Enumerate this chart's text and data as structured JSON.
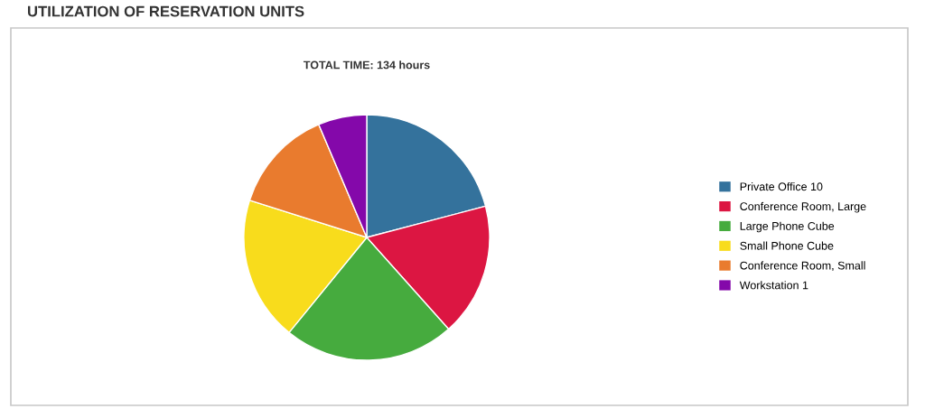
{
  "chart_data": {
    "type": "pie",
    "title": "UTILIZATION OF RESERVATION UNITS",
    "subtitle": "TOTAL TIME: 134 hours",
    "categories": [
      "Private Office 10",
      "Conference Room, Large",
      "Large Phone Cube",
      "Small Phone Cube",
      "Conference Room, Small",
      "Workstation 1"
    ],
    "values": [
      20.9,
      17.5,
      22.5,
      19.0,
      13.7,
      6.4
    ],
    "colors": [
      "#34729c",
      "#dc1642",
      "#46ab3e",
      "#f8dc1c",
      "#e97b2e",
      "#8408aa"
    ],
    "legend": "right"
  }
}
